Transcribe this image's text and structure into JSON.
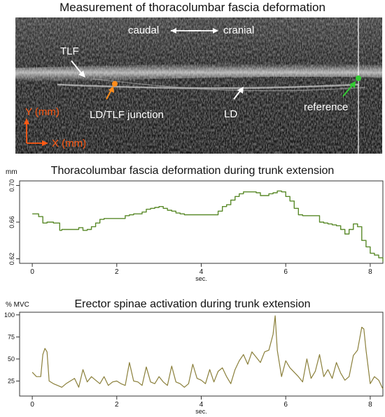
{
  "main_title": "Measurement of thoracolumbar fascia deformation",
  "ultrasound": {
    "direction_left": "caudal",
    "direction_right": "cranial",
    "labels": {
      "tlf": "TLF",
      "junction": "LD/TLF junction",
      "ld": "LD",
      "reference": "reference",
      "y_axis": "Y (mm)",
      "x_axis": "X (mm)"
    },
    "colors": {
      "junction_marker": "#ff8c1a",
      "reference_marker": "#33cc33",
      "axis_arrows": "#ff5a14"
    }
  },
  "chart_data": [
    {
      "type": "line",
      "title": "Thoracolumbar fascia deformation during trunk extension",
      "ylabel": "mm",
      "xlabel": "sec.",
      "xlim": [
        -0.3,
        8.3
      ],
      "ylim": [
        0.615,
        0.705
      ],
      "x_ticks": [
        0,
        2,
        4,
        6,
        8
      ],
      "y_ticks": [
        0.62,
        0.66,
        0.7
      ],
      "color": "#5a8a2a",
      "x": [
        0.0,
        0.1,
        0.15,
        0.25,
        0.35,
        0.5,
        0.6,
        0.65,
        0.7,
        0.8,
        1.0,
        1.1,
        1.15,
        1.2,
        1.3,
        1.4,
        1.5,
        1.6,
        1.7,
        1.8,
        1.9,
        2.0,
        2.1,
        2.2,
        2.3,
        2.4,
        2.5,
        2.6,
        2.7,
        2.75,
        2.8,
        2.9,
        3.0,
        3.1,
        3.2,
        3.3,
        3.4,
        3.5,
        3.6,
        3.7,
        3.8,
        3.9,
        4.0,
        4.1,
        4.2,
        4.3,
        4.4,
        4.5,
        4.6,
        4.7,
        4.8,
        4.9,
        5.0,
        5.1,
        5.2,
        5.3,
        5.4,
        5.5,
        5.6,
        5.7,
        5.8,
        5.9,
        6.0,
        6.1,
        6.2,
        6.3,
        6.4,
        6.5,
        6.6,
        6.7,
        6.8,
        6.9,
        7.0,
        7.1,
        7.2,
        7.3,
        7.4,
        7.5,
        7.6,
        7.7,
        7.8,
        7.9,
        8.0,
        8.1,
        8.2,
        8.3
      ],
      "values": [
        0.669,
        0.669,
        0.666,
        0.659,
        0.66,
        0.659,
        0.659,
        0.651,
        0.652,
        0.652,
        0.652,
        0.654,
        0.654,
        0.651,
        0.652,
        0.655,
        0.659,
        0.663,
        0.664,
        0.664,
        0.664,
        0.664,
        0.664,
        0.667,
        0.668,
        0.669,
        0.669,
        0.671,
        0.674,
        0.674,
        0.675,
        0.676,
        0.677,
        0.675,
        0.673,
        0.672,
        0.67,
        0.669,
        0.668,
        0.668,
        0.668,
        0.668,
        0.668,
        0.668,
        0.668,
        0.668,
        0.672,
        0.677,
        0.679,
        0.684,
        0.688,
        0.691,
        0.693,
        0.693,
        0.693,
        0.692,
        0.689,
        0.689,
        0.691,
        0.692,
        0.694,
        0.693,
        0.688,
        0.683,
        0.675,
        0.668,
        0.667,
        0.667,
        0.667,
        0.667,
        0.66,
        0.659,
        0.658,
        0.657,
        0.656,
        0.652,
        0.647,
        0.652,
        0.658,
        0.655,
        0.64,
        0.633,
        0.626,
        0.624,
        0.621,
        0.617
      ]
    },
    {
      "type": "line",
      "title": "Erector spinae activation during trunk extension",
      "ylabel": "% MVC",
      "xlabel": "sec.",
      "xlim": [
        -0.3,
        8.3
      ],
      "ylim": [
        8,
        103
      ],
      "x_ticks": [
        0,
        2,
        4,
        6,
        8
      ],
      "y_ticks": [
        25,
        50,
        75,
        100
      ],
      "color": "#8a7f3a",
      "x": [
        0.0,
        0.1,
        0.2,
        0.25,
        0.3,
        0.35,
        0.4,
        0.5,
        0.6,
        0.7,
        0.8,
        0.9,
        1.0,
        1.1,
        1.2,
        1.3,
        1.4,
        1.5,
        1.6,
        1.7,
        1.8,
        1.9,
        2.0,
        2.1,
        2.2,
        2.3,
        2.4,
        2.5,
        2.6,
        2.7,
        2.8,
        2.9,
        3.0,
        3.1,
        3.2,
        3.3,
        3.4,
        3.5,
        3.6,
        3.7,
        3.8,
        3.9,
        4.0,
        4.1,
        4.2,
        4.3,
        4.4,
        4.5,
        4.6,
        4.7,
        4.8,
        4.9,
        5.0,
        5.1,
        5.2,
        5.3,
        5.4,
        5.5,
        5.6,
        5.7,
        5.75,
        5.8,
        5.9,
        6.0,
        6.1,
        6.2,
        6.3,
        6.4,
        6.5,
        6.6,
        6.7,
        6.8,
        6.9,
        7.0,
        7.1,
        7.2,
        7.3,
        7.4,
        7.5,
        7.6,
        7.7,
        7.8,
        7.85,
        7.9,
        8.0,
        8.1,
        8.2,
        8.3
      ],
      "values": [
        35,
        30,
        30,
        55,
        62,
        58,
        25,
        22,
        20,
        18,
        22,
        25,
        28,
        18,
        38,
        24,
        30,
        26,
        22,
        30,
        20,
        24,
        25,
        22,
        20,
        46,
        25,
        24,
        20,
        41,
        24,
        22,
        30,
        24,
        20,
        42,
        24,
        22,
        18,
        22,
        44,
        28,
        26,
        22,
        38,
        24,
        36,
        40,
        30,
        22,
        38,
        48,
        55,
        44,
        58,
        52,
        46,
        58,
        60,
        78,
        99,
        60,
        30,
        48,
        40,
        35,
        30,
        24,
        50,
        28,
        36,
        55,
        30,
        38,
        28,
        46,
        34,
        26,
        30,
        54,
        60,
        86,
        84,
        60,
        22,
        30,
        26,
        16
      ]
    }
  ]
}
